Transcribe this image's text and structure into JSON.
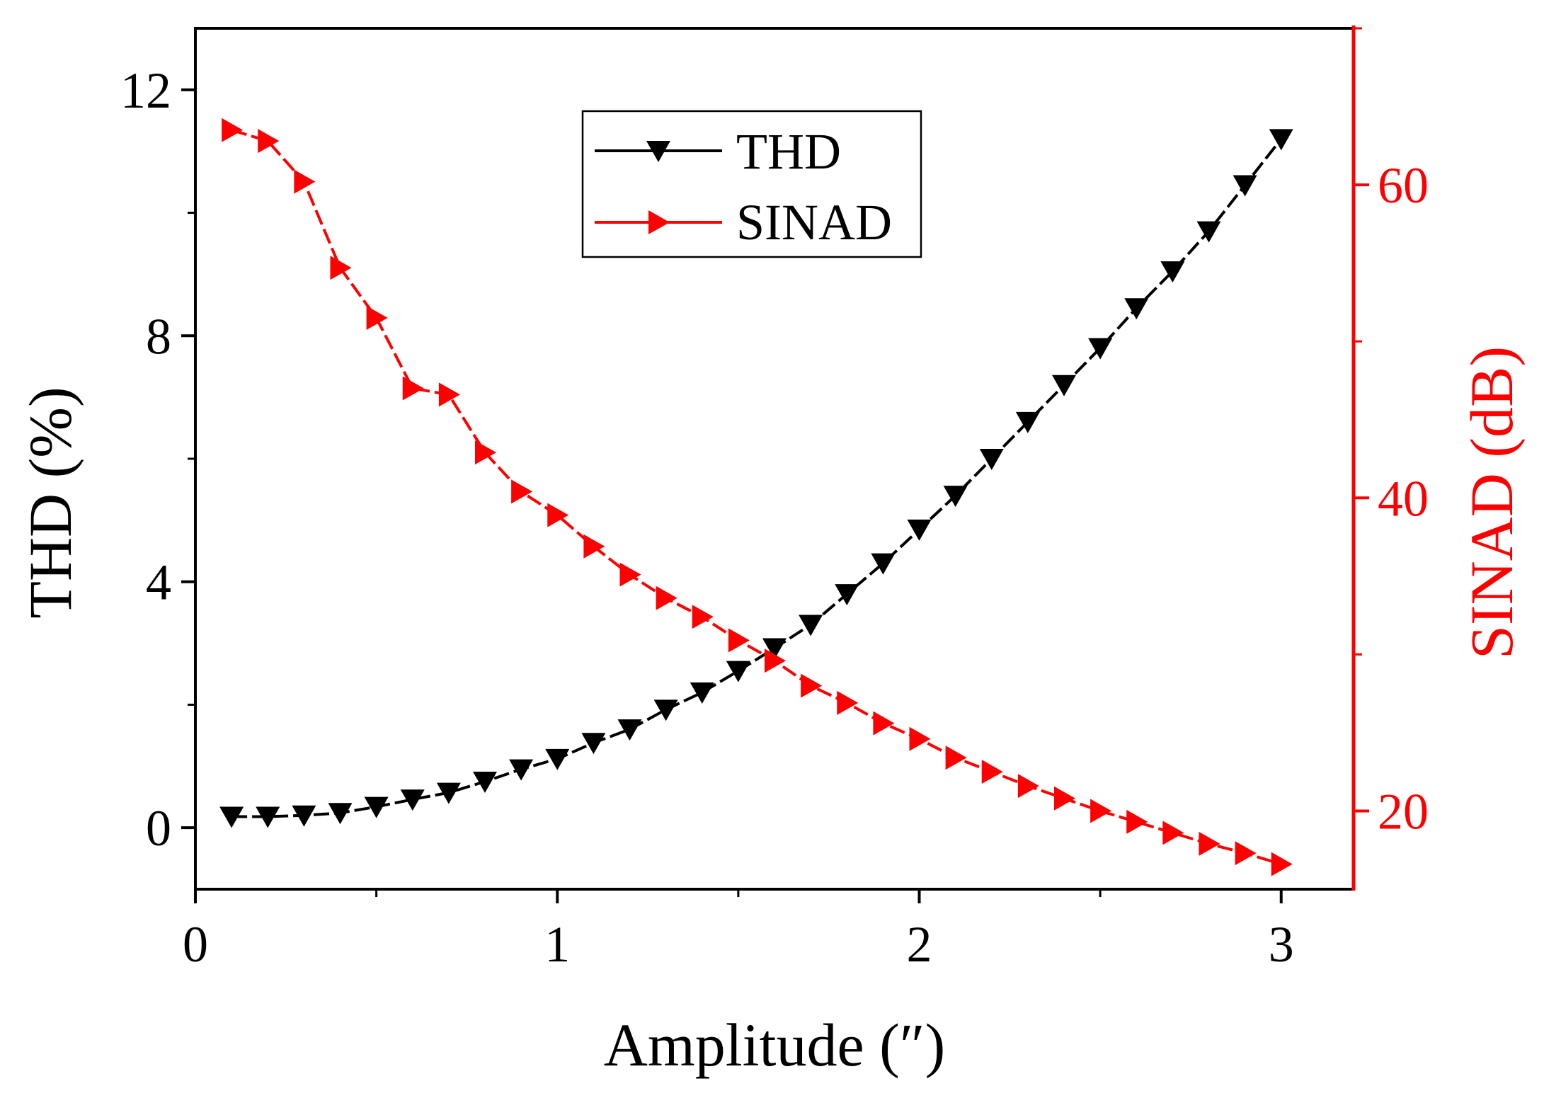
{
  "chart_data": {
    "type": "line",
    "xlabel": "Amplitude (″)",
    "ylabel_left": "THD (%)",
    "ylabel_right": "SINAD (dB)",
    "xlim": [
      0,
      3.2
    ],
    "ylim_left": [
      -1,
      13
    ],
    "ylim_right": [
      15,
      70
    ],
    "x_ticks": [
      0,
      1,
      2,
      3
    ],
    "x_tick_labels": [
      "0",
      "1",
      "2",
      "3"
    ],
    "y_left_ticks": [
      0,
      4,
      8,
      12
    ],
    "y_left_tick_labels": [
      "0",
      "4",
      "8",
      "12"
    ],
    "y_right_ticks": [
      20,
      40,
      60
    ],
    "y_right_tick_labels": [
      "20",
      "40",
      "60"
    ],
    "legend_position": "top-center",
    "colors": {
      "thd": "#000000",
      "sinad": "#ff0000"
    },
    "x": [
      0.1,
      0.2,
      0.3,
      0.4,
      0.5,
      0.6,
      0.7,
      0.8,
      0.9,
      1.0,
      1.1,
      1.2,
      1.3,
      1.4,
      1.5,
      1.6,
      1.7,
      1.8,
      1.9,
      2.0,
      2.1,
      2.2,
      2.3,
      2.4,
      2.5,
      2.6,
      2.7,
      2.8,
      2.9,
      3.0
    ],
    "series": [
      {
        "name": "THD",
        "axis": "left",
        "marker": "triangle-down",
        "values": [
          0.18,
          0.18,
          0.2,
          0.24,
          0.34,
          0.46,
          0.57,
          0.75,
          0.95,
          1.12,
          1.38,
          1.6,
          1.92,
          2.2,
          2.55,
          2.92,
          3.3,
          3.8,
          4.3,
          4.85,
          5.4,
          6.0,
          6.6,
          7.2,
          7.8,
          8.45,
          9.05,
          9.7,
          10.45,
          11.2
        ]
      },
      {
        "name": "SINAD",
        "axis": "right",
        "marker": "triangle-right",
        "values": [
          63.5,
          62.8,
          60.2,
          54.7,
          51.5,
          47.0,
          46.6,
          42.9,
          40.4,
          38.9,
          36.9,
          35.1,
          33.6,
          32.4,
          30.9,
          29.6,
          28.0,
          26.9,
          25.6,
          24.6,
          23.4,
          22.5,
          21.6,
          20.8,
          20.0,
          19.3,
          18.6,
          17.9,
          17.3,
          16.6
        ]
      }
    ]
  }
}
